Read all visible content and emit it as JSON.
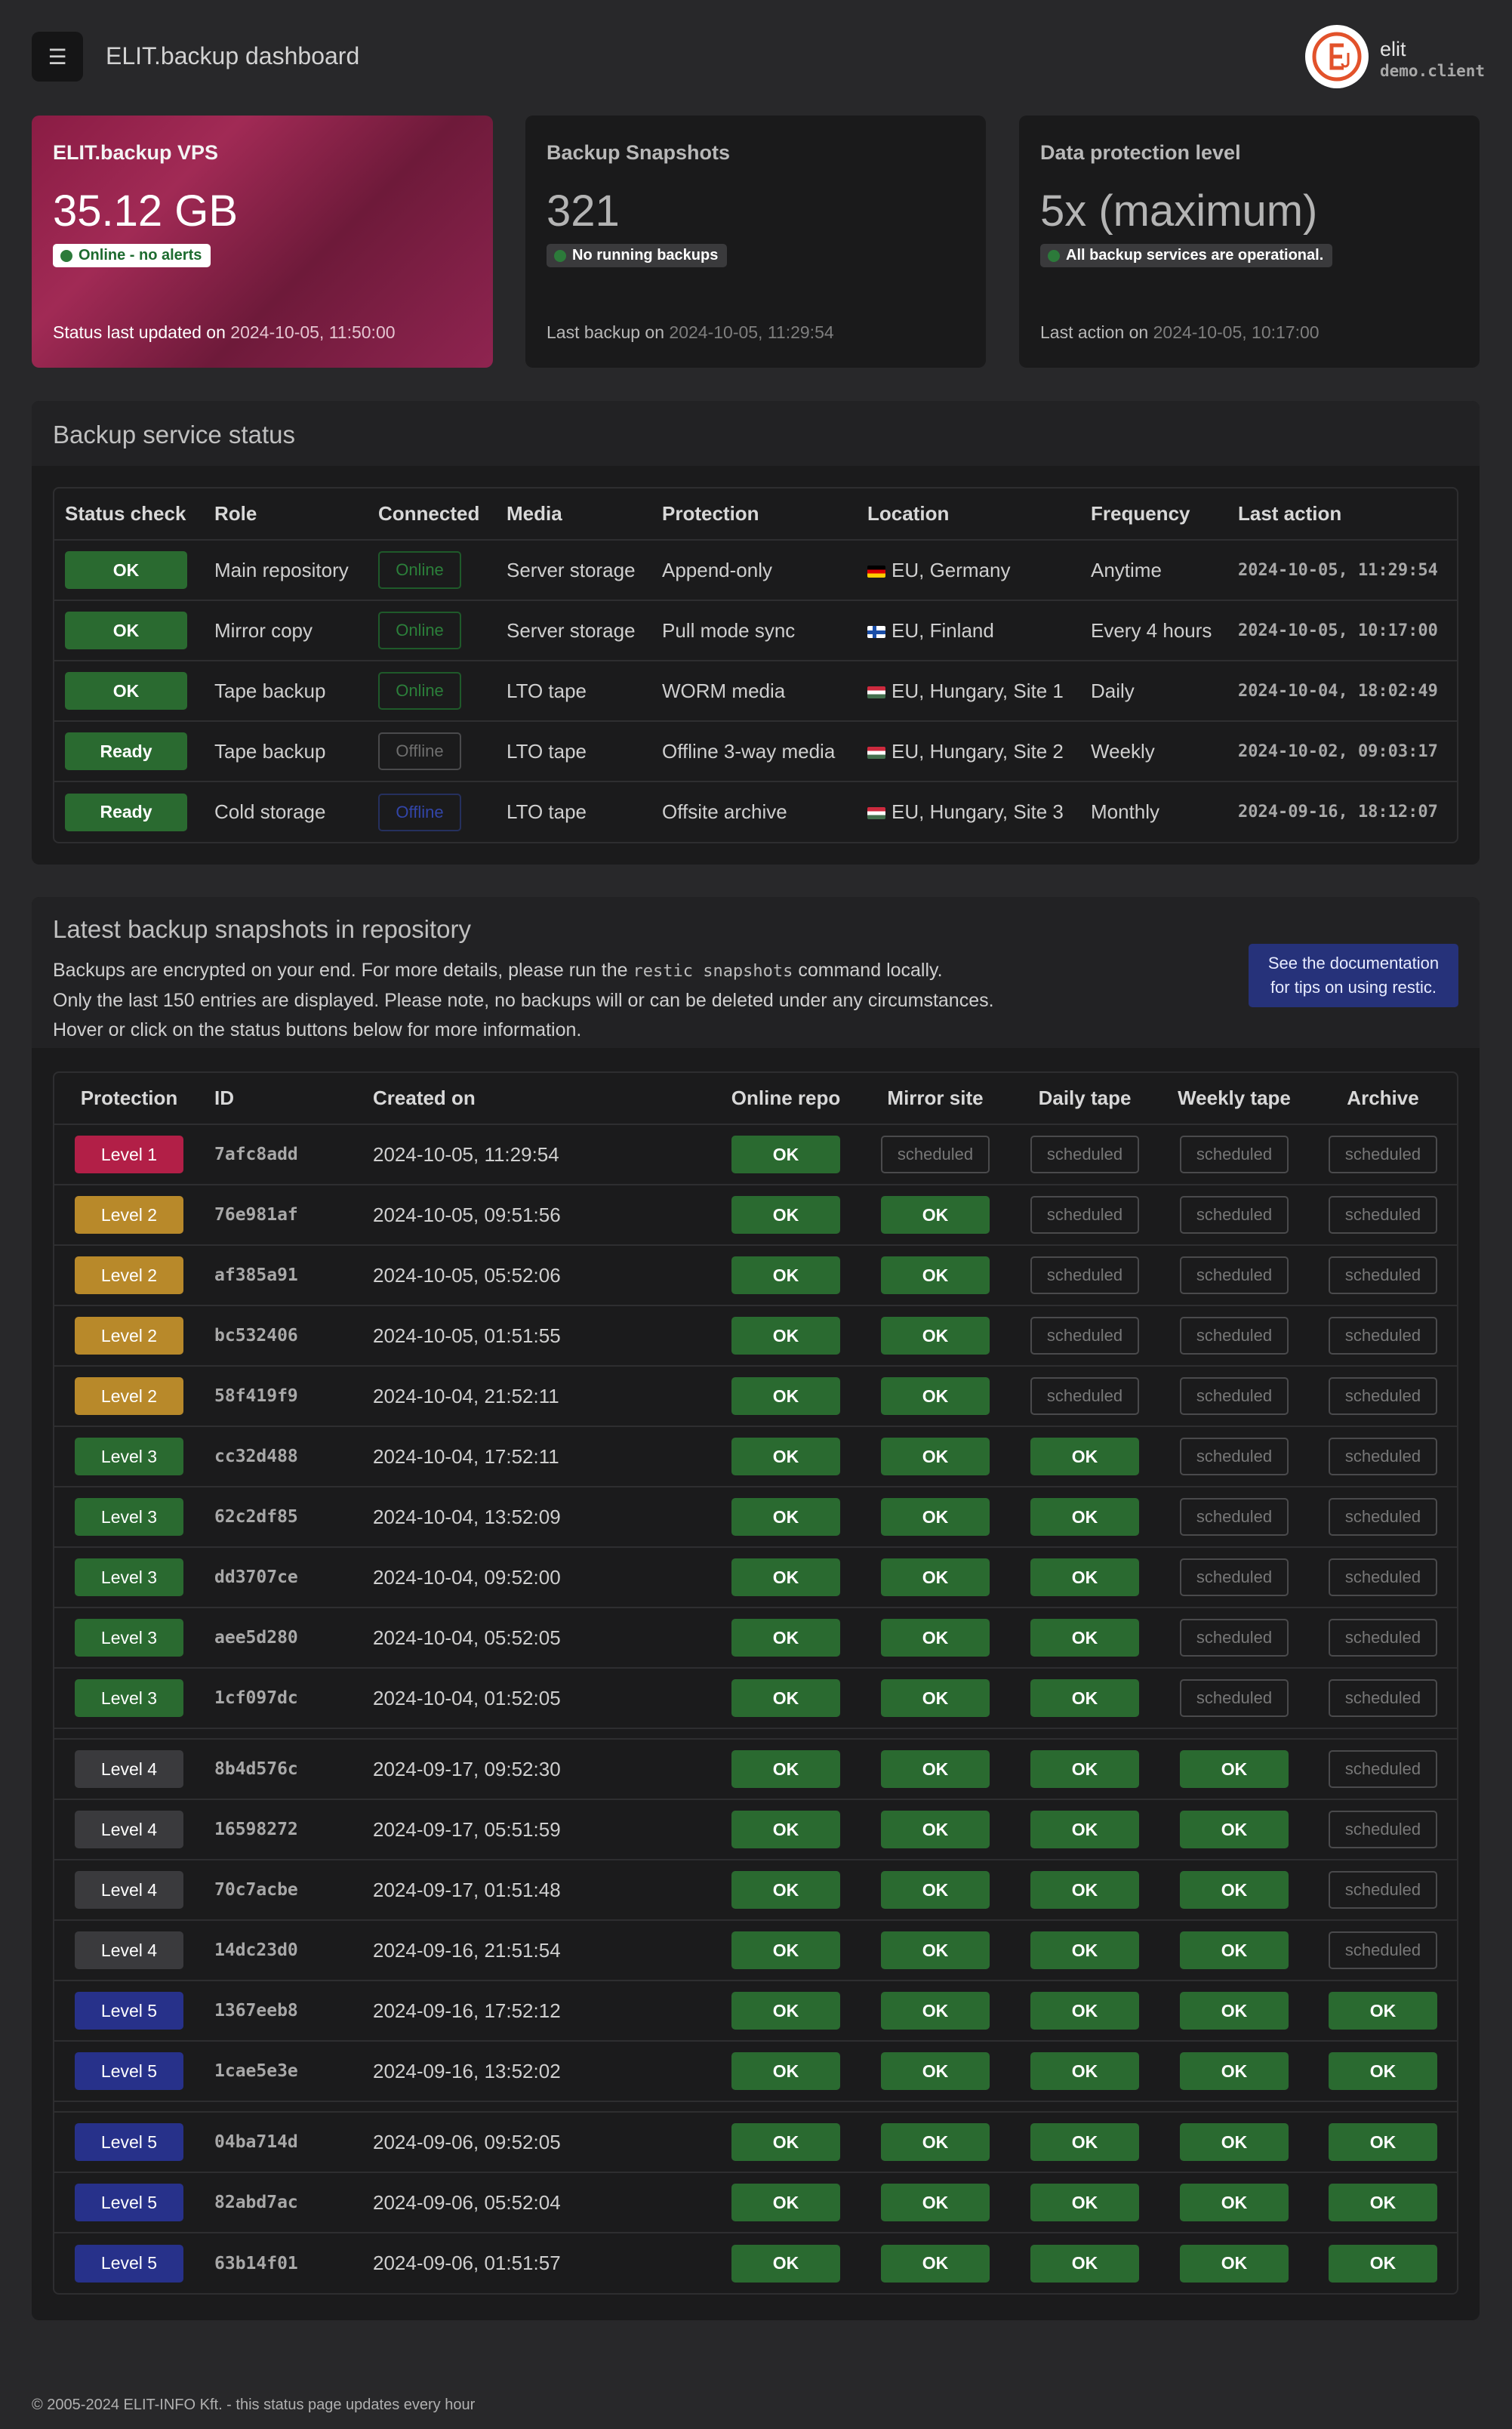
{
  "header": {
    "menu_icon": "☰",
    "title": "ELIT.backup dashboard",
    "user_name": "elit",
    "user_client": "demo.client"
  },
  "cards": [
    {
      "title": "ELIT.backup VPS",
      "value": "35.12 GB",
      "badge": "Online - no alerts",
      "foot_label": "Status last updated on ",
      "foot_time": "2024-10-05, 11:50:00"
    },
    {
      "title": "Backup Snapshots",
      "value": "321",
      "badge": "No running backups",
      "foot_label": "Last backup on ",
      "foot_time": "2024-10-05, 11:29:54"
    },
    {
      "title": "Data protection level",
      "value": "5x (maximum)",
      "badge": "All backup services are operational.",
      "foot_label": "Last action on ",
      "foot_time": "2024-10-05, 10:17:00"
    }
  ],
  "service": {
    "title": "Backup service status",
    "columns": [
      "Status check",
      "Role",
      "Connected",
      "Media",
      "Protection",
      "Location",
      "Frequency",
      "Last action"
    ],
    "rows": [
      {
        "status": "OK",
        "role": "Main repository",
        "connected": "Online",
        "media": "Server storage",
        "protection": "Append-only",
        "location": "EU, Germany",
        "frequency": "Anytime",
        "last": "2024-10-05, 11:29:54"
      },
      {
        "status": "OK",
        "role": "Mirror copy",
        "connected": "Online",
        "media": "Server storage",
        "protection": "Pull mode sync",
        "location": "EU, Finland",
        "frequency": "Every 4 hours",
        "last": "2024-10-05, 10:17:00"
      },
      {
        "status": "OK",
        "role": "Tape backup",
        "connected": "Online",
        "media": "LTO tape",
        "protection": "WORM media",
        "location": "EU, Hungary, Site 1",
        "frequency": "Daily",
        "last": "2024-10-04, 18:02:49"
      },
      {
        "status": "Ready",
        "role": "Tape backup",
        "connected": "Offline",
        "media": "LTO tape",
        "protection": "Offline 3-way media",
        "location": "EU, Hungary, Site 2",
        "frequency": "Weekly",
        "last": "2024-10-02, 09:03:17"
      },
      {
        "status": "Ready",
        "role": "Cold storage",
        "connected": "Offline",
        "media": "LTO tape",
        "protection": "Offsite archive",
        "location": "EU, Hungary, Site 3",
        "frequency": "Monthly",
        "last": "2024-09-16, 18:12:07"
      }
    ]
  },
  "snapshots": {
    "title": "Latest backup snapshots in repository",
    "desc_line1_a": "Backups are encrypted on your end. For more details, please run the ",
    "desc_code": "restic snapshots",
    "desc_line1_b": " command locally.",
    "desc_line2": "Only the last 150 entries are displayed. Please note, no backups will or can be deleted under any circumstances.",
    "desc_line3": "Hover or click on the status buttons below for more information.",
    "doc_button_line1": "See the documentation",
    "doc_button_line2": "for tips on using restic.",
    "columns": [
      "Protection",
      "ID",
      "Created on",
      "Online repo",
      "Mirror site",
      "Daily tape",
      "Weekly tape",
      "Archive"
    ],
    "ok_label": "OK",
    "scheduled_label": "scheduled",
    "groups": [
      [
        {
          "level": "Level 1",
          "lv": 1,
          "id": "7afc8add",
          "created": "2024-10-05, 11:29:54",
          "status": [
            1,
            0,
            0,
            0,
            0
          ]
        },
        {
          "level": "Level 2",
          "lv": 2,
          "id": "76e981af",
          "created": "2024-10-05, 09:51:56",
          "status": [
            1,
            1,
            0,
            0,
            0
          ]
        },
        {
          "level": "Level 2",
          "lv": 2,
          "id": "af385a91",
          "created": "2024-10-05, 05:52:06",
          "status": [
            1,
            1,
            0,
            0,
            0
          ]
        },
        {
          "level": "Level 2",
          "lv": 2,
          "id": "bc532406",
          "created": "2024-10-05, 01:51:55",
          "status": [
            1,
            1,
            0,
            0,
            0
          ]
        },
        {
          "level": "Level 2",
          "lv": 2,
          "id": "58f419f9",
          "created": "2024-10-04, 21:52:11",
          "status": [
            1,
            1,
            0,
            0,
            0
          ]
        },
        {
          "level": "Level 3",
          "lv": 3,
          "id": "cc32d488",
          "created": "2024-10-04, 17:52:11",
          "status": [
            1,
            1,
            1,
            0,
            0
          ]
        },
        {
          "level": "Level 3",
          "lv": 3,
          "id": "62c2df85",
          "created": "2024-10-04, 13:52:09",
          "status": [
            1,
            1,
            1,
            0,
            0
          ]
        },
        {
          "level": "Level 3",
          "lv": 3,
          "id": "dd3707ce",
          "created": "2024-10-04, 09:52:00",
          "status": [
            1,
            1,
            1,
            0,
            0
          ]
        },
        {
          "level": "Level 3",
          "lv": 3,
          "id": "aee5d280",
          "created": "2024-10-04, 05:52:05",
          "status": [
            1,
            1,
            1,
            0,
            0
          ]
        },
        {
          "level": "Level 3",
          "lv": 3,
          "id": "1cf097dc",
          "created": "2024-10-04, 01:52:05",
          "status": [
            1,
            1,
            1,
            0,
            0
          ]
        }
      ],
      [
        {
          "level": "Level 4",
          "lv": 4,
          "id": "8b4d576c",
          "created": "2024-09-17, 09:52:30",
          "status": [
            1,
            1,
            1,
            1,
            0
          ]
        },
        {
          "level": "Level 4",
          "lv": 4,
          "id": "16598272",
          "created": "2024-09-17, 05:51:59",
          "status": [
            1,
            1,
            1,
            1,
            0
          ]
        },
        {
          "level": "Level 4",
          "lv": 4,
          "id": "70c7acbe",
          "created": "2024-09-17, 01:51:48",
          "status": [
            1,
            1,
            1,
            1,
            0
          ]
        },
        {
          "level": "Level 4",
          "lv": 4,
          "id": "14dc23d0",
          "created": "2024-09-16, 21:51:54",
          "status": [
            1,
            1,
            1,
            1,
            0
          ]
        },
        {
          "level": "Level 5",
          "lv": 5,
          "id": "1367eeb8",
          "created": "2024-09-16, 17:52:12",
          "status": [
            1,
            1,
            1,
            1,
            1
          ]
        },
        {
          "level": "Level 5",
          "lv": 5,
          "id": "1cae5e3e",
          "created": "2024-09-16, 13:52:02",
          "status": [
            1,
            1,
            1,
            1,
            1
          ]
        }
      ],
      [
        {
          "level": "Level 5",
          "lv": 5,
          "id": "04ba714d",
          "created": "2024-09-06, 09:52:05",
          "status": [
            1,
            1,
            1,
            1,
            1
          ]
        },
        {
          "level": "Level 5",
          "lv": 5,
          "id": "82abd7ac",
          "created": "2024-09-06, 05:52:04",
          "status": [
            1,
            1,
            1,
            1,
            1
          ]
        },
        {
          "level": "Level 5",
          "lv": 5,
          "id": "63b14f01",
          "created": "2024-09-06, 01:51:57",
          "status": [
            1,
            1,
            1,
            1,
            1
          ]
        }
      ]
    ]
  },
  "footer": "© 2005-2024 ELIT-INFO Kft. - this status page updates every hour"
}
